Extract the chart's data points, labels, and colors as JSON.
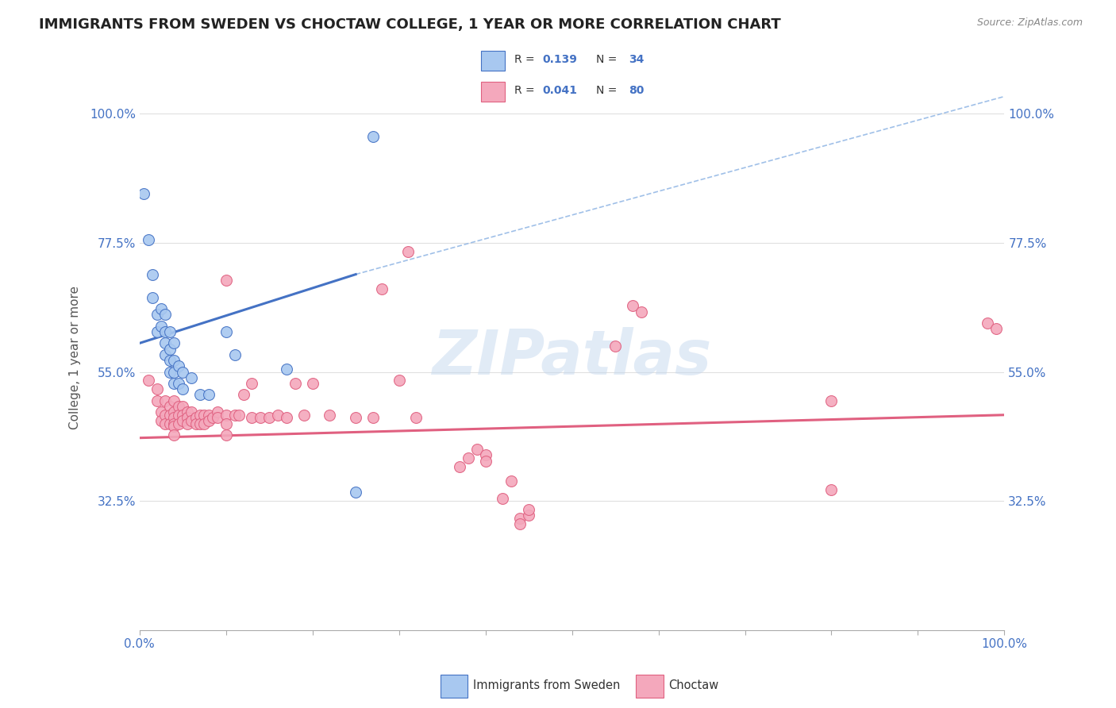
{
  "title": "IMMIGRANTS FROM SWEDEN VS CHOCTAW COLLEGE, 1 YEAR OR MORE CORRELATION CHART",
  "source_text": "Source: ZipAtlas.com",
  "ylabel": "College, 1 year or more",
  "xmin": 0.0,
  "xmax": 1.0,
  "ymin": 0.1,
  "ymax": 1.05,
  "ytick_positions": [
    0.325,
    0.55,
    0.775,
    1.0
  ],
  "ytick_labels": [
    "32.5%",
    "55.0%",
    "77.5%",
    "100.0%"
  ],
  "xtick_positions": [
    0.0,
    0.1,
    0.2,
    0.3,
    0.4,
    0.5,
    0.6,
    0.7,
    0.8,
    0.9,
    1.0
  ],
  "xtick_labels_show": [
    "0.0%",
    "",
    "",
    "",
    "",
    "",
    "",
    "",
    "",
    "",
    "100.0%"
  ],
  "background_color": "#ffffff",
  "grid_color": "#e0e0e0",
  "axis_label_color": "#4472c4",
  "watermark": "ZIPatlas",
  "sweden_color": "#A8C8F0",
  "choctaw_color": "#F4A8BC",
  "sweden_edge_color": "#4472c4",
  "choctaw_edge_color": "#E06080",
  "sweden_line_color": "#4472c4",
  "choctaw_line_color": "#E06080",
  "dashed_line_color": "#A0C0E8",
  "legend_r_color": "#4472c4",
  "sweden_trendline": [
    [
      0.0,
      0.6
    ],
    [
      0.25,
      0.72
    ]
  ],
  "sweden_dashed_line": [
    [
      0.25,
      0.72
    ],
    [
      1.0,
      1.03
    ]
  ],
  "choctaw_trendline": [
    [
      0.0,
      0.435
    ],
    [
      1.0,
      0.475
    ]
  ],
  "sweden_scatter": [
    [
      0.005,
      0.86
    ],
    [
      0.01,
      0.78
    ],
    [
      0.015,
      0.72
    ],
    [
      0.015,
      0.68
    ],
    [
      0.02,
      0.65
    ],
    [
      0.02,
      0.62
    ],
    [
      0.025,
      0.66
    ],
    [
      0.025,
      0.63
    ],
    [
      0.03,
      0.65
    ],
    [
      0.03,
      0.62
    ],
    [
      0.03,
      0.6
    ],
    [
      0.03,
      0.58
    ],
    [
      0.035,
      0.62
    ],
    [
      0.035,
      0.59
    ],
    [
      0.035,
      0.57
    ],
    [
      0.035,
      0.55
    ],
    [
      0.04,
      0.6
    ],
    [
      0.04,
      0.57
    ],
    [
      0.04,
      0.55
    ],
    [
      0.04,
      0.53
    ],
    [
      0.045,
      0.56
    ],
    [
      0.045,
      0.53
    ],
    [
      0.05,
      0.55
    ],
    [
      0.05,
      0.52
    ],
    [
      0.06,
      0.54
    ],
    [
      0.07,
      0.51
    ],
    [
      0.08,
      0.51
    ],
    [
      0.1,
      0.62
    ],
    [
      0.11,
      0.58
    ],
    [
      0.17,
      0.555
    ],
    [
      0.25,
      0.34
    ],
    [
      0.27,
      0.96
    ]
  ],
  "choctaw_scatter": [
    [
      0.01,
      0.535
    ],
    [
      0.02,
      0.52
    ],
    [
      0.02,
      0.5
    ],
    [
      0.025,
      0.48
    ],
    [
      0.025,
      0.465
    ],
    [
      0.03,
      0.5
    ],
    [
      0.03,
      0.475
    ],
    [
      0.03,
      0.46
    ],
    [
      0.035,
      0.49
    ],
    [
      0.035,
      0.475
    ],
    [
      0.035,
      0.46
    ],
    [
      0.04,
      0.5
    ],
    [
      0.04,
      0.48
    ],
    [
      0.04,
      0.47
    ],
    [
      0.04,
      0.46
    ],
    [
      0.04,
      0.455
    ],
    [
      0.045,
      0.49
    ],
    [
      0.045,
      0.475
    ],
    [
      0.045,
      0.46
    ],
    [
      0.05,
      0.49
    ],
    [
      0.05,
      0.475
    ],
    [
      0.05,
      0.465
    ],
    [
      0.055,
      0.48
    ],
    [
      0.055,
      0.47
    ],
    [
      0.055,
      0.46
    ],
    [
      0.06,
      0.48
    ],
    [
      0.06,
      0.465
    ],
    [
      0.065,
      0.47
    ],
    [
      0.065,
      0.46
    ],
    [
      0.07,
      0.475
    ],
    [
      0.07,
      0.46
    ],
    [
      0.075,
      0.475
    ],
    [
      0.075,
      0.46
    ],
    [
      0.08,
      0.475
    ],
    [
      0.08,
      0.465
    ],
    [
      0.085,
      0.47
    ],
    [
      0.09,
      0.48
    ],
    [
      0.09,
      0.47
    ],
    [
      0.1,
      0.475
    ],
    [
      0.1,
      0.46
    ],
    [
      0.11,
      0.475
    ],
    [
      0.115,
      0.475
    ],
    [
      0.12,
      0.51
    ],
    [
      0.13,
      0.53
    ],
    [
      0.13,
      0.47
    ],
    [
      0.14,
      0.47
    ],
    [
      0.15,
      0.47
    ],
    [
      0.16,
      0.475
    ],
    [
      0.17,
      0.47
    ],
    [
      0.18,
      0.53
    ],
    [
      0.19,
      0.475
    ],
    [
      0.2,
      0.53
    ],
    [
      0.22,
      0.475
    ],
    [
      0.25,
      0.47
    ],
    [
      0.27,
      0.47
    ],
    [
      0.3,
      0.535
    ],
    [
      0.31,
      0.76
    ],
    [
      0.32,
      0.47
    ],
    [
      0.28,
      0.695
    ],
    [
      0.37,
      0.385
    ],
    [
      0.38,
      0.4
    ],
    [
      0.39,
      0.415
    ],
    [
      0.4,
      0.405
    ],
    [
      0.4,
      0.395
    ],
    [
      0.42,
      0.33
    ],
    [
      0.43,
      0.36
    ],
    [
      0.44,
      0.295
    ],
    [
      0.44,
      0.285
    ],
    [
      0.45,
      0.3
    ],
    [
      0.45,
      0.31
    ],
    [
      0.55,
      0.595
    ],
    [
      0.57,
      0.665
    ],
    [
      0.58,
      0.655
    ],
    [
      0.8,
      0.5
    ],
    [
      0.8,
      0.345
    ],
    [
      0.98,
      0.635
    ],
    [
      0.99,
      0.625
    ],
    [
      0.1,
      0.71
    ],
    [
      0.1,
      0.44
    ],
    [
      0.04,
      0.44
    ]
  ]
}
